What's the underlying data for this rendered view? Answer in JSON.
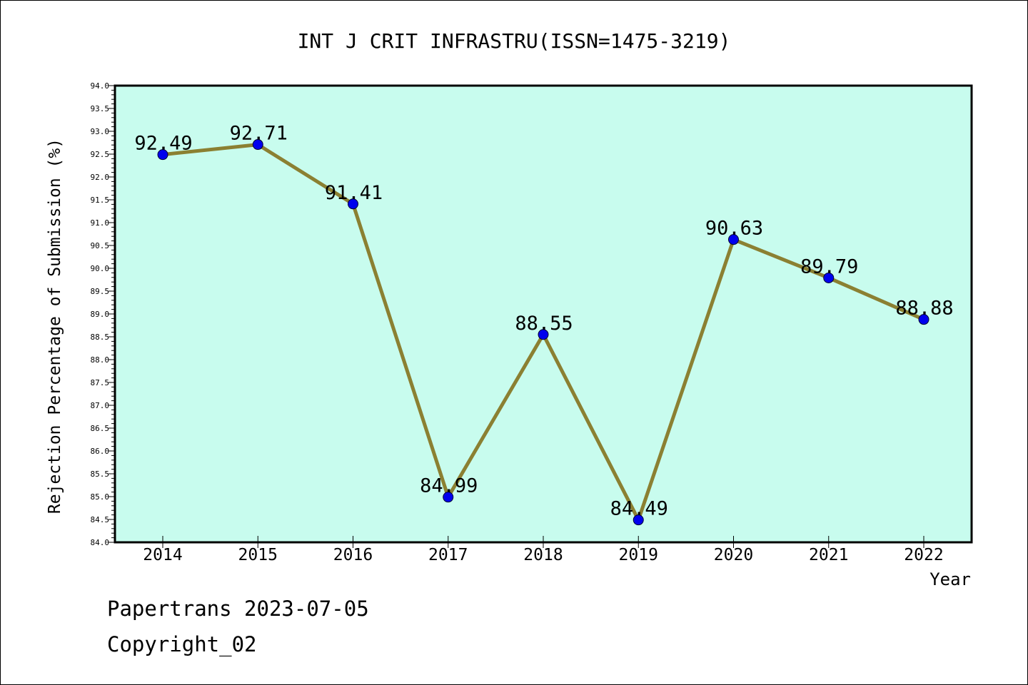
{
  "chart_data": {
    "type": "line",
    "title": "INT J CRIT INFRASTRU(ISSN=1475-3219)",
    "xlabel": "Year",
    "ylabel": "Rejection Percentage of Submission (%)",
    "x": [
      "2014",
      "2015",
      "2016",
      "2017",
      "2018",
      "2019",
      "2020",
      "2021",
      "2022"
    ],
    "series": [
      {
        "values": [
          92.49,
          92.71,
          91.41,
          84.99,
          88.55,
          84.49,
          90.63,
          89.79,
          88.88
        ]
      }
    ],
    "data_labels": [
      "92.49",
      "92.71",
      "91.41",
      "84.99",
      "88.55",
      "84.49",
      "90.63",
      "89.79",
      "88.88"
    ],
    "ylim": [
      84.0,
      94.0
    ],
    "y_ticks": [
      "84.0",
      "84.5",
      "85.0",
      "85.5",
      "86.0",
      "86.5",
      "87.0",
      "87.5",
      "88.0",
      "88.5",
      "89.0",
      "89.5",
      "90.0",
      "90.5",
      "91.0",
      "91.5",
      "92.0",
      "92.5",
      "93.0",
      "93.5",
      "94.0"
    ],
    "grid": false,
    "colors": {
      "plot_background": "#c8fcee",
      "line": "#8b8032",
      "marker": "#0000ee"
    }
  },
  "footer": {
    "source": "Papertrans 2023-07-05",
    "copyright": "Copyright_02"
  }
}
